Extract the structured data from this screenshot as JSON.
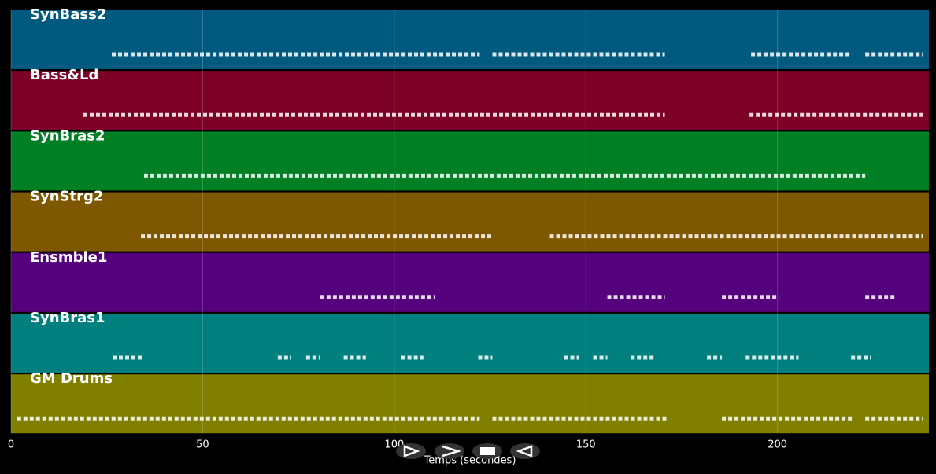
{
  "chart_data": {
    "type": "piano-roll",
    "x_label": "Temps (secondes)",
    "xlim": [
      0,
      239.5
    ],
    "xticks": [
      0,
      50,
      100,
      150,
      200
    ],
    "grid": true,
    "tracks": [
      {
        "name": "SynBass2",
        "color": "#005a80",
        "segments": [
          [
            26.3,
            122.3
          ],
          [
            125.6,
            170.6
          ],
          [
            193.1,
            219.4
          ],
          [
            222.9,
            237.9
          ]
        ]
      },
      {
        "name": "Bass&Ld",
        "color": "#7d0029",
        "segments": [
          [
            18.9,
            170.6
          ],
          [
            192.7,
            237.9
          ]
        ]
      },
      {
        "name": "SynBras2",
        "color": "#007f24",
        "segments": [
          [
            34.7,
            222.9
          ]
        ]
      },
      {
        "name": "SynStrg2",
        "color": "#7d5800",
        "segments": [
          [
            33.9,
            125.6
          ],
          [
            140.6,
            237.9
          ]
        ]
      },
      {
        "name": "Ensmble1",
        "color": "#55007d",
        "segments": [
          [
            80.7,
            110.6
          ],
          [
            155.6,
            170.6
          ],
          [
            185.5,
            200.5
          ],
          [
            222.9,
            230.5
          ]
        ]
      },
      {
        "name": "SynBras1",
        "color": "#007f7f",
        "segments": [
          [
            26.5,
            34.1
          ],
          [
            69.6,
            73.1
          ],
          [
            77.0,
            80.7
          ],
          [
            86.8,
            92.6
          ],
          [
            101.8,
            107.6
          ],
          [
            121.9,
            125.6
          ],
          [
            144.3,
            148.2
          ],
          [
            151.9,
            155.6
          ],
          [
            161.7,
            167.9
          ],
          [
            181.6,
            185.5
          ],
          [
            191.7,
            205.5
          ],
          [
            219.2,
            224.3
          ]
        ]
      },
      {
        "name": "GM Drums",
        "color": "#807f00",
        "segments": [
          [
            1.6,
            122.3
          ],
          [
            125.6,
            171.2
          ],
          [
            185.5,
            219.4
          ],
          [
            222.9,
            237.9
          ]
        ]
      }
    ]
  }
}
